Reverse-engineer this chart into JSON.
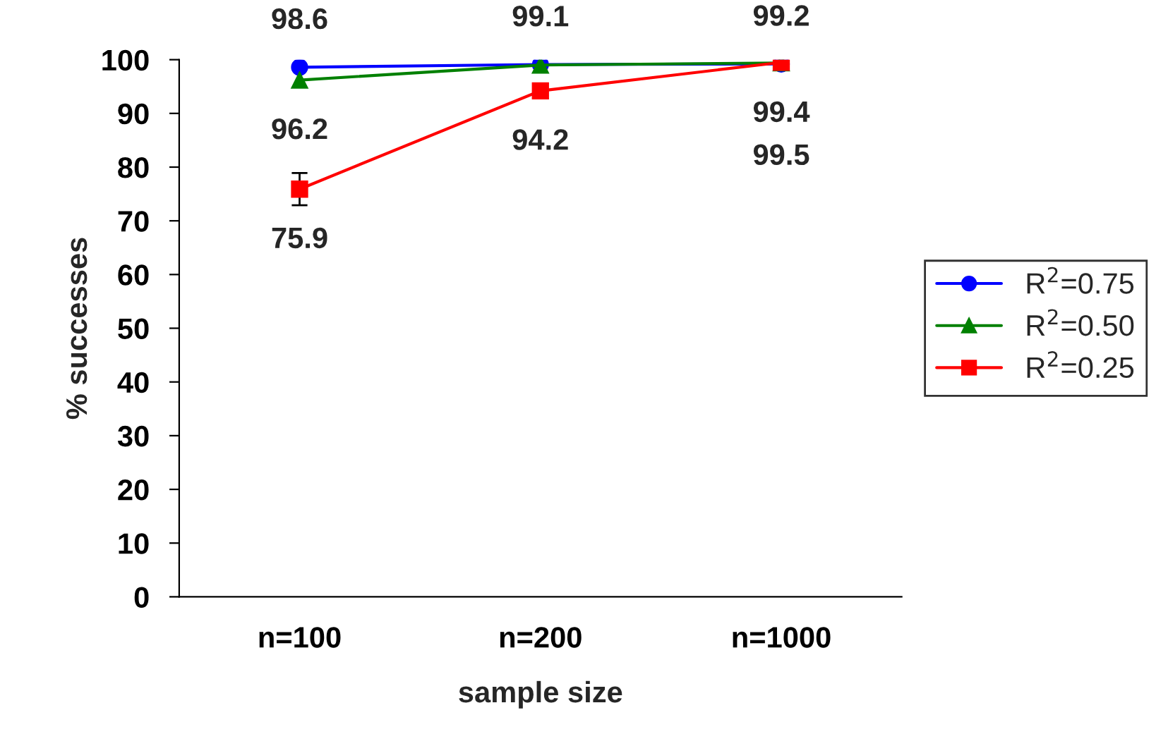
{
  "chart_data": {
    "type": "line",
    "xlabel": "sample size",
    "ylabel": "% successes",
    "categories": [
      "n=100",
      "n=200",
      "n=1000"
    ],
    "ylim": [
      0,
      100
    ],
    "yticks": [
      0,
      10,
      20,
      30,
      40,
      50,
      60,
      70,
      80,
      90,
      100
    ],
    "grid": false,
    "legend": "right",
    "series": [
      {
        "name": "R$^{2}$=0.75",
        "color": "#0000ff",
        "marker": "circle",
        "values": [
          98.6,
          99.1,
          99.2
        ],
        "value_labels": [
          "98.6",
          "99.1",
          "99.2"
        ]
      },
      {
        "name": "R$^{2}$=0.50",
        "color": "#008000",
        "marker": "triangle",
        "values": [
          96.2,
          99.0,
          99.4
        ],
        "value_labels": [
          "96.2",
          null,
          "99.4"
        ]
      },
      {
        "name": "R$^{2}$=0.25",
        "color": "#ff0000",
        "marker": "square",
        "values": [
          75.9,
          94.2,
          99.5
        ],
        "value_labels": [
          "75.9",
          "94.2",
          "99.5"
        ],
        "errors": [
          3,
          null,
          null
        ]
      }
    ]
  }
}
